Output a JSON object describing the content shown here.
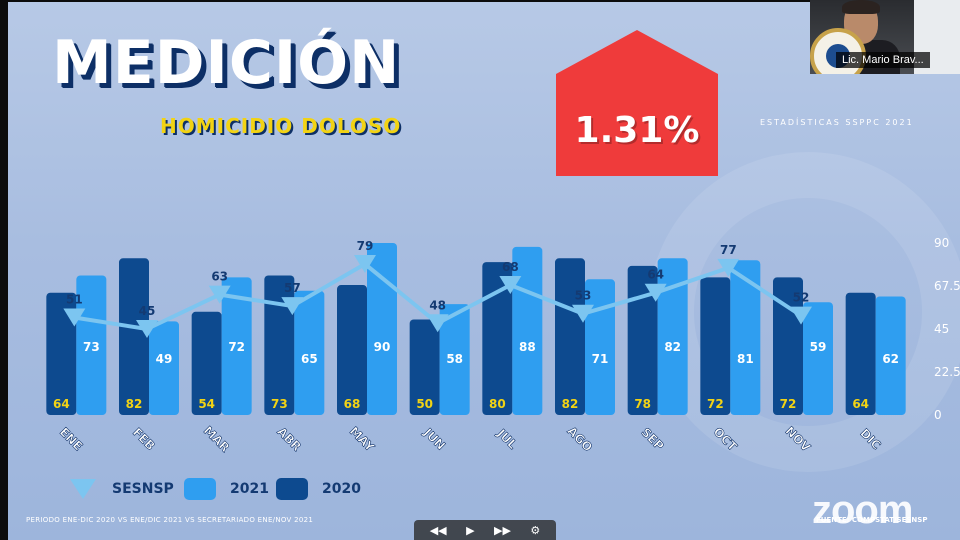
{
  "slide": {
    "title": "MEDICIÓN",
    "subtitle": "HOMICIDIO DOLOSO",
    "badge_value": "1.31%",
    "badge_color": "#ef3b3b",
    "stats_label": "ESTADÍSTICAS SSPPC 2021",
    "footnote": "PERIODO ENE-DIC 2020 VS ENE/DIC 2021 VS SECRETARIADO ENE/NOV 2021",
    "fuente": "FUENTE: COMPSTAT/SESNSP"
  },
  "overlay": {
    "participant_name": "Lic. Mario Brav...",
    "zoom_logo": "zoom"
  },
  "chart_data": {
    "type": "bar",
    "categories": [
      "ENE",
      "FEB",
      "MAR",
      "ABR",
      "MAY",
      "JUN",
      "JUL",
      "AGO",
      "SEP",
      "OCT",
      "NOV",
      "DIC"
    ],
    "ylim": [
      0,
      90
    ],
    "right_axis_ticks": [
      "90",
      "67.5",
      "45",
      "22.5",
      "0"
    ],
    "grid": false,
    "legend_position": "bottom-left",
    "series": [
      {
        "name": "2020",
        "type": "bar",
        "color": "#0d4a8f",
        "label_color": "#f2d314",
        "values": [
          64,
          82,
          54,
          73,
          68,
          50,
          80,
          82,
          78,
          72,
          72,
          64
        ]
      },
      {
        "name": "2021",
        "type": "bar",
        "color": "#2f9ef0",
        "label_color": "#ffffff",
        "values": [
          73,
          49,
          72,
          65,
          90,
          58,
          88,
          71,
          82,
          81,
          59,
          62
        ]
      },
      {
        "name": "SESNSP",
        "type": "line",
        "color": "#7cc5f0",
        "marker": "triangle-down",
        "label_color": "#143a72",
        "values": [
          51,
          45,
          63,
          57,
          79,
          48,
          68,
          53,
          64,
          77,
          52,
          null
        ]
      }
    ]
  }
}
